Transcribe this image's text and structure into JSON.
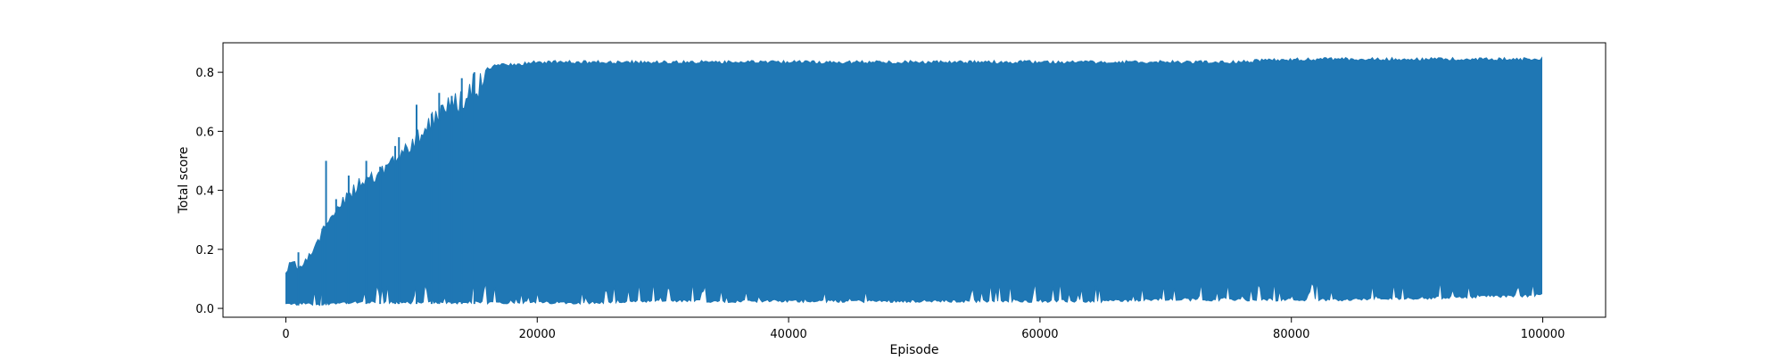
{
  "chart_data": {
    "type": "area",
    "xlabel": "Episode",
    "ylabel": "Total score",
    "xlim": [
      -5000,
      105000
    ],
    "ylim": [
      -0.03,
      0.9
    ],
    "x_ticks": [
      0,
      20000,
      40000,
      60000,
      80000,
      100000
    ],
    "y_ticks": [
      0.0,
      0.2,
      0.4,
      0.6,
      0.8
    ],
    "x_tick_labels": [
      "0",
      "20000",
      "40000",
      "60000",
      "80000",
      "100000"
    ],
    "y_tick_labels": [
      "0.0",
      "0.2",
      "0.4",
      "0.6",
      "0.8"
    ],
    "grid": false,
    "series": [
      {
        "color": "#1f77b4",
        "style": "rapidly oscillating line, drawn as min/max envelope",
        "x": [
          0,
          500,
          1000,
          2000,
          3000,
          4000,
          5000,
          6000,
          7000,
          8000,
          9000,
          10000,
          11000,
          12000,
          13000,
          14000,
          15000,
          16000,
          17000,
          18000,
          20000,
          25000,
          30000,
          35000,
          40000,
          45000,
          50000,
          55000,
          60000,
          65000,
          70000,
          75000,
          80000,
          85000,
          90000,
          95000,
          100000
        ],
        "upper": [
          0.13,
          0.18,
          0.14,
          0.2,
          0.28,
          0.37,
          0.4,
          0.45,
          0.47,
          0.5,
          0.56,
          0.6,
          0.65,
          0.7,
          0.72,
          0.76,
          0.8,
          0.82,
          0.83,
          0.83,
          0.84,
          0.84,
          0.84,
          0.84,
          0.84,
          0.84,
          0.84,
          0.84,
          0.84,
          0.84,
          0.84,
          0.84,
          0.85,
          0.85,
          0.85,
          0.85,
          0.85
        ],
        "lower": [
          0.01,
          0.01,
          0.01,
          0.01,
          0.01,
          0.015,
          0.015,
          0.015,
          0.015,
          0.015,
          0.015,
          0.015,
          0.015,
          0.015,
          0.015,
          0.015,
          0.015,
          0.015,
          0.015,
          0.015,
          0.015,
          0.015,
          0.02,
          0.02,
          0.02,
          0.02,
          0.02,
          0.02,
          0.02,
          0.02,
          0.025,
          0.025,
          0.025,
          0.025,
          0.03,
          0.035,
          0.04
        ],
        "spike_peaks_early": [
          [
            1000,
            0.19
          ],
          [
            2900,
            0.27
          ],
          [
            3200,
            0.5
          ],
          [
            4000,
            0.37
          ],
          [
            5000,
            0.45
          ],
          [
            6400,
            0.5
          ],
          [
            7500,
            0.48
          ],
          [
            8700,
            0.55
          ],
          [
            9000,
            0.58
          ],
          [
            10400,
            0.69
          ],
          [
            11600,
            0.66
          ],
          [
            12200,
            0.73
          ],
          [
            13200,
            0.72
          ],
          [
            14000,
            0.78
          ],
          [
            15000,
            0.8
          ]
        ]
      }
    ]
  }
}
